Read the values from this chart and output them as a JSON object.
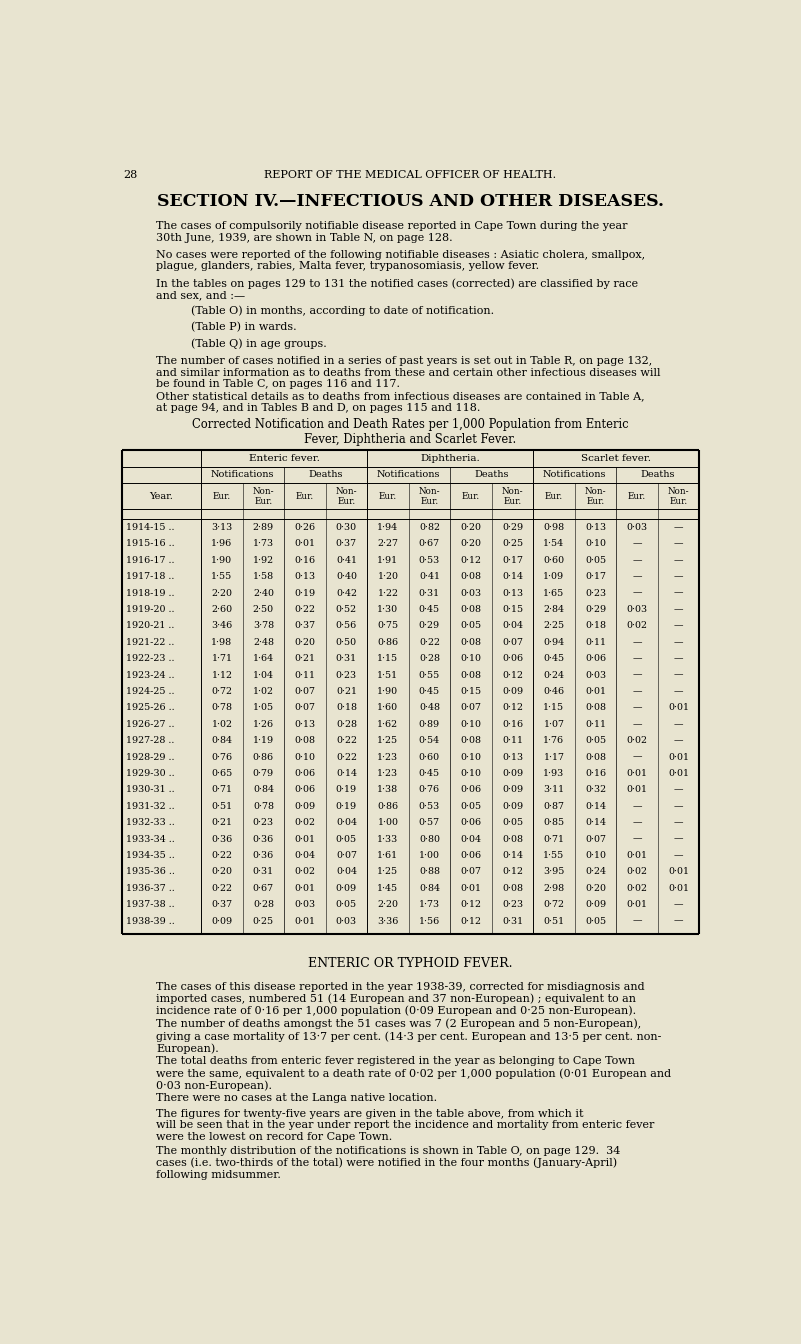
{
  "page_number": "28",
  "header": "REPORT OF THE MEDICAL OFFICER OF HEALTH.",
  "bg_color": "#e8e4d0",
  "section_title": "SECTION IV.—INFECTIOUS AND OTHER DISEASES.",
  "para1": "The cases of compulsorily notifiable disease reported in Cape Town during the year\n30th June, 1939, are shown in Table N, on page 128.",
  "para2": "No cases were reported of the following notifiable diseases : Asiatic cholera, smallpox,\nplague, glanders, rabies, Malta fever, trypanosomiasis, yellow fever.",
  "para3": "In the tables on pages 129 to 131 the notified cases (corrected) are classified by race\nand sex, and :—",
  "table_items": [
    "(Table O) in months, according to date of notification.",
    "(Table P) in wards.",
    "(Table Q) in age groups."
  ],
  "para4": "The number of cases notified in a series of past years is set out in Table R, on page 132,\nand similar information as to deaths from these and certain other infectious diseases will\nbe found in Table C, on pages 116 and 117.",
  "para5": "Other statistical details as to deaths from infectious diseases are contained in Table A,\nat page 94, and in Tables B and D, on pages 115 and 118.",
  "table_caption_line1": "Corrected Notification and Death Rates per 1,000 Population from Enteric",
  "table_caption_line2": "Fever, Diphtheria and Scarlet Fever.",
  "years": [
    "1914-15",
    "1915-16",
    "1916-17",
    "1917-18",
    "1918-19",
    "1919-20",
    "1920-21",
    "1921-22",
    "1922-23",
    "1923-24",
    "1924-25",
    "1925-26",
    "1926-27",
    "1927-28",
    "1928-29",
    "1929-30",
    "1930-31",
    "1931-32",
    "1932-33",
    "1933-34",
    "1934-35",
    "1935-36",
    "1936-37",
    "1937-38",
    "1938-39"
  ],
  "data": [
    [
      "3·13",
      "2·89",
      "0·26",
      "0·30",
      "1·94",
      "0·82",
      "0·20",
      "0·29",
      "0·98",
      "0·13",
      "0·03",
      "—"
    ],
    [
      "1·96",
      "1·73",
      "0·01",
      "0·37",
      "2·27",
      "0·67",
      "0·20",
      "0·25",
      "1·54",
      "0·10",
      "—",
      "—"
    ],
    [
      "1·90",
      "1·92",
      "0·16",
      "0·41",
      "1·91",
      "0·53",
      "0·12",
      "0·17",
      "0·60",
      "0·05",
      "—",
      "—"
    ],
    [
      "1·55",
      "1·58",
      "0·13",
      "0·40",
      "1·20",
      "0·41",
      "0·08",
      "0·14",
      "1·09",
      "0·17",
      "—",
      "—"
    ],
    [
      "2·20",
      "2·40",
      "0·19",
      "0·42",
      "1·22",
      "0·31",
      "0·03",
      "0·13",
      "1·65",
      "0·23",
      "—",
      "—"
    ],
    [
      "2·60",
      "2·50",
      "0·22",
      "0·52",
      "1·30",
      "0·45",
      "0·08",
      "0·15",
      "2·84",
      "0·29",
      "0·03",
      "—"
    ],
    [
      "3·46",
      "3·78",
      "0·37",
      "0·56",
      "0·75",
      "0·29",
      "0·05",
      "0·04",
      "2·25",
      "0·18",
      "0·02",
      "—"
    ],
    [
      "1·98",
      "2·48",
      "0·20",
      "0·50",
      "0·86",
      "0·22",
      "0·08",
      "0·07",
      "0·94",
      "0·11",
      "—",
      "—"
    ],
    [
      "1·71",
      "1·64",
      "0·21",
      "0·31",
      "1·15",
      "0·28",
      "0·10",
      "0·06",
      "0·45",
      "0·06",
      "—",
      "—"
    ],
    [
      "1·12",
      "1·04",
      "0·11",
      "0·23",
      "1·51",
      "0·55",
      "0·08",
      "0·12",
      "0·24",
      "0·03",
      "—",
      "—"
    ],
    [
      "0·72",
      "1·02",
      "0·07",
      "0·21",
      "1·90",
      "0·45",
      "0·15",
      "0·09",
      "0·46",
      "0·01",
      "—",
      "—"
    ],
    [
      "0·78",
      "1·05",
      "0·07",
      "0·18",
      "1·60",
      "0·48",
      "0·07",
      "0·12",
      "1·15",
      "0·08",
      "—",
      "0·01"
    ],
    [
      "1·02",
      "1·26",
      "0·13",
      "0·28",
      "1·62",
      "0·89",
      "0·10",
      "0·16",
      "1·07",
      "0·11",
      "—",
      "—"
    ],
    [
      "0·84",
      "1·19",
      "0·08",
      "0·22",
      "1·25",
      "0·54",
      "0·08",
      "0·11",
      "1·76",
      "0·05",
      "0·02",
      "—"
    ],
    [
      "0·76",
      "0·86",
      "0·10",
      "0·22",
      "1·23",
      "0·60",
      "0·10",
      "0·13",
      "1·17",
      "0·08",
      "—",
      "0·01"
    ],
    [
      "0·65",
      "0·79",
      "0·06",
      "0·14",
      "1·23",
      "0·45",
      "0·10",
      "0·09",
      "1·93",
      "0·16",
      "0·01",
      "0·01"
    ],
    [
      "0·71",
      "0·84",
      "0·06",
      "0·19",
      "1·38",
      "0·76",
      "0·06",
      "0·09",
      "3·11",
      "0·32",
      "0·01",
      "—"
    ],
    [
      "0·51",
      "0·78",
      "0·09",
      "0·19",
      "0·86",
      "0·53",
      "0·05",
      "0·09",
      "0·87",
      "0·14",
      "—",
      "—"
    ],
    [
      "0·21",
      "0·23",
      "0·02",
      "0·04",
      "1·00",
      "0·57",
      "0·06",
      "0·05",
      "0·85",
      "0·14",
      "—",
      "—"
    ],
    [
      "0·36",
      "0·36",
      "0·01",
      "0·05",
      "1·33",
      "0·80",
      "0·04",
      "0·08",
      "0·71",
      "0·07",
      "—",
      "—"
    ],
    [
      "0·22",
      "0·36",
      "0·04",
      "0·07",
      "1·61",
      "1·00",
      "0·06",
      "0·14",
      "1·55",
      "0·10",
      "0·01",
      "—"
    ],
    [
      "0·20",
      "0·31",
      "0·02",
      "0·04",
      "1·25",
      "0·88",
      "0·07",
      "0·12",
      "3·95",
      "0·24",
      "0·02",
      "0·01"
    ],
    [
      "0·22",
      "0·67",
      "0·01",
      "0·09",
      "1·45",
      "0·84",
      "0·01",
      "0·08",
      "2·98",
      "0·20",
      "0·02",
      "0·01"
    ],
    [
      "0·37",
      "0·28",
      "0·03",
      "0·05",
      "2·20",
      "1·73",
      "0·12",
      "0·23",
      "0·72",
      "0·09",
      "0·01",
      "—"
    ],
    [
      "0·09",
      "0·25",
      "0·01",
      "0·03",
      "3·36",
      "1·56",
      "0·12",
      "0·31",
      "0·51",
      "0·05",
      "—",
      "—"
    ]
  ],
  "section2_title": "ENTERIC OR TYPHOID FEVER.",
  "section2_para1": "The cases of this disease reported in the year 1938-39, corrected for misdiagnosis and\nimported cases, numbered 51 (14 European and 37 non-European) ; equivalent to an\nincidence rate of 0·16 per 1,000 population (0·09 European and 0·25 non-European).",
  "section2_para2": "The number of deaths amongst the 51 cases was 7 (2 European and 5 non-European),\ngiving a case mortality of 13·7 per cent. (14·3 per cent. European and 13·5 per cent. non-\nEuropean).",
  "section2_para3": "The total deaths from enteric fever registered in the year as belonging to Cape Town\nwere the same, equivalent to a death rate of 0·02 per 1,000 population (0·01 European and\n0·03 non-European).",
  "section2_para4": "There were no cases at the Langa native location.",
  "section2_para5": "The figures for twenty-five years are given in the table above, from which it\nwill be seen that in the year under report the incidence and mortality from enteric fever\nwere the lowest on record for Cape Town.",
  "section2_para6": "The monthly distribution of the notifications is shown in Table O, on page 129.  34\ncases (i.e. two-thirds of the total) were notified in the four months (January-April)\nfollowing midsummer."
}
